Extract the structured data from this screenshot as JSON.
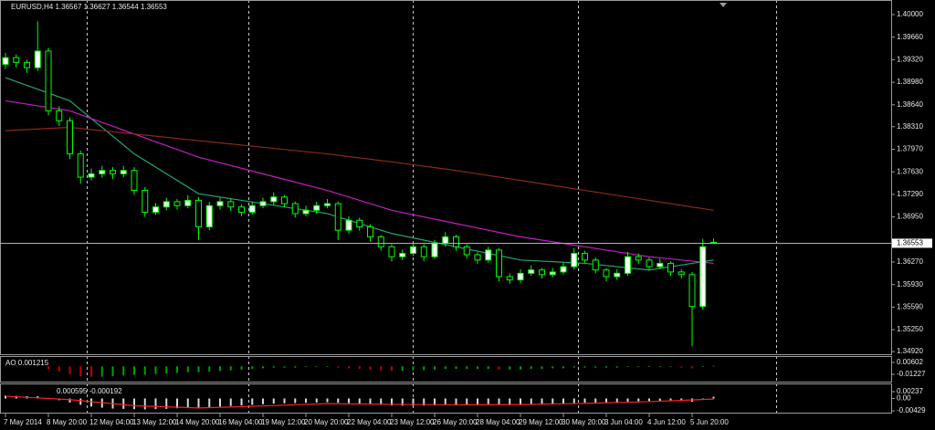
{
  "chart_data": {
    "type": "candlestick",
    "symbol_label": "EURUSD,H4",
    "categories": [
      "7 May 2014",
      null,
      null,
      null,
      "8 May 20:00",
      null,
      null,
      null,
      "12 May 04:00",
      null,
      null,
      null,
      "13 May 12:00",
      null,
      null,
      null,
      "14 May 20:00",
      null,
      null,
      null,
      "16 May 04:00",
      null,
      null,
      null,
      "19 May 12:00",
      null,
      null,
      null,
      "20 May 20:00",
      null,
      null,
      null,
      "22 May 04:00",
      null,
      null,
      null,
      "23 May 12:00",
      null,
      null,
      null,
      "26 May 20:00",
      null,
      null,
      null,
      "28 May 04:00",
      null,
      null,
      null,
      "29 May 12:00",
      null,
      null,
      null,
      "30 May 20:00",
      null,
      null,
      null,
      "3 Jun 04:00",
      null,
      null,
      null,
      "4 Jun 12:00",
      null,
      null,
      null,
      "5 Jun 20:00",
      null,
      null
    ],
    "ohlc": [
      [
        1.3925,
        1.3942,
        1.3918,
        1.3935
      ],
      [
        1.3935,
        1.394,
        1.392,
        1.3928
      ],
      [
        1.3928,
        1.3932,
        1.3912,
        1.392
      ],
      [
        1.392,
        1.399,
        1.3915,
        1.3945
      ],
      [
        1.3945,
        1.395,
        1.3848,
        1.3855
      ],
      [
        1.3855,
        1.3862,
        1.3832,
        1.384
      ],
      [
        1.384,
        1.3845,
        1.3782,
        1.379
      ],
      [
        1.379,
        1.3795,
        1.3745,
        1.3755
      ],
      [
        1.3755,
        1.3768,
        1.375,
        1.376
      ],
      [
        1.376,
        1.3772,
        1.3754,
        1.3765
      ],
      [
        1.3765,
        1.377,
        1.3752,
        1.376
      ],
      [
        1.376,
        1.3772,
        1.3755,
        1.3765
      ],
      [
        1.3765,
        1.377,
        1.3728,
        1.3735
      ],
      [
        1.3735,
        1.374,
        1.3695,
        1.3702
      ],
      [
        1.3702,
        1.3716,
        1.3698,
        1.371
      ],
      [
        1.371,
        1.3724,
        1.3705,
        1.3718
      ],
      [
        1.3718,
        1.3722,
        1.3706,
        1.3712
      ],
      [
        1.3712,
        1.3728,
        1.3708,
        1.372
      ],
      [
        1.372,
        1.3725,
        1.366,
        1.368
      ],
      [
        1.368,
        1.3718,
        1.3675,
        1.3712
      ],
      [
        1.3712,
        1.3724,
        1.3706,
        1.3718
      ],
      [
        1.3718,
        1.3722,
        1.3704,
        1.371
      ],
      [
        1.371,
        1.3714,
        1.3696,
        1.3702
      ],
      [
        1.3702,
        1.3718,
        1.3698,
        1.3712
      ],
      [
        1.3712,
        1.3724,
        1.3708,
        1.3718
      ],
      [
        1.3718,
        1.3732,
        1.3712,
        1.3725
      ],
      [
        1.3725,
        1.3728,
        1.371,
        1.3715
      ],
      [
        1.3715,
        1.3718,
        1.3694,
        1.37
      ],
      [
        1.37,
        1.3712,
        1.3696,
        1.3705
      ],
      [
        1.3705,
        1.3718,
        1.37,
        1.3712
      ],
      [
        1.3712,
        1.3722,
        1.3708,
        1.3715
      ],
      [
        1.3715,
        1.3718,
        1.366,
        1.3675
      ],
      [
        1.3675,
        1.3696,
        1.367,
        1.369
      ],
      [
        1.369,
        1.3694,
        1.3674,
        1.368
      ],
      [
        1.368,
        1.3684,
        1.3658,
        1.3665
      ],
      [
        1.3665,
        1.3668,
        1.3644,
        1.365
      ],
      [
        1.365,
        1.3654,
        1.3628,
        1.3635
      ],
      [
        1.3635,
        1.3646,
        1.363,
        1.364
      ],
      [
        1.364,
        1.3656,
        1.3636,
        1.365
      ],
      [
        1.365,
        1.3654,
        1.3628,
        1.3635
      ],
      [
        1.3635,
        1.366,
        1.3632,
        1.3655
      ],
      [
        1.3655,
        1.3672,
        1.365,
        1.3665
      ],
      [
        1.3665,
        1.3668,
        1.3644,
        1.365
      ],
      [
        1.365,
        1.3654,
        1.3632,
        1.3638
      ],
      [
        1.3638,
        1.3642,
        1.3624,
        1.363
      ],
      [
        1.363,
        1.365,
        1.3626,
        1.3645
      ],
      [
        1.3645,
        1.3648,
        1.3598,
        1.3605
      ],
      [
        1.3605,
        1.361,
        1.3594,
        1.36
      ],
      [
        1.36,
        1.3616,
        1.3596,
        1.361
      ],
      [
        1.361,
        1.3622,
        1.3606,
        1.3615
      ],
      [
        1.3615,
        1.3618,
        1.3602,
        1.3608
      ],
      [
        1.3608,
        1.3618,
        1.3604,
        1.3612
      ],
      [
        1.3612,
        1.3626,
        1.3608,
        1.362
      ],
      [
        1.362,
        1.3648,
        1.3616,
        1.364
      ],
      [
        1.364,
        1.3644,
        1.3626,
        1.363
      ],
      [
        1.363,
        1.3634,
        1.361,
        1.3615
      ],
      [
        1.3615,
        1.3618,
        1.3598,
        1.3605
      ],
      [
        1.3605,
        1.3616,
        1.36,
        1.361
      ],
      [
        1.361,
        1.3642,
        1.3606,
        1.3635
      ],
      [
        1.3635,
        1.364,
        1.3624,
        1.363
      ],
      [
        1.363,
        1.3634,
        1.3614,
        1.362
      ],
      [
        1.362,
        1.3632,
        1.3616,
        1.3625
      ],
      [
        1.3625,
        1.3628,
        1.3606,
        1.3612
      ],
      [
        1.3612,
        1.3616,
        1.3602,
        1.3608
      ],
      [
        1.3608,
        1.3612,
        1.35,
        1.356
      ],
      [
        1.356,
        1.3662,
        1.3555,
        1.365
      ],
      [
        1.36567,
        1.36627,
        1.36544,
        1.36553
      ]
    ],
    "bull_color": "#ffffff",
    "bear_color": "#000000",
    "wick_color": "#00ff00",
    "ylim": [
      1.3488,
      1.4022
    ],
    "yticks": [
      {
        "value": 1.4,
        "label": "1.40000"
      },
      {
        "value": 1.3966,
        "label": "1.39660"
      },
      {
        "value": 1.3932,
        "label": "1.39320"
      },
      {
        "value": 1.3898,
        "label": "1.38980"
      },
      {
        "value": 1.3864,
        "label": "1.38640"
      },
      {
        "value": 1.3831,
        "label": "1.38310"
      },
      {
        "value": 1.3797,
        "label": "1.37970"
      },
      {
        "value": 1.3763,
        "label": "1.37630"
      },
      {
        "value": 1.3729,
        "label": "1.37290"
      },
      {
        "value": 1.3695,
        "label": "1.36950"
      },
      {
        "value": 1.3627,
        "label": "1.36270"
      },
      {
        "value": 1.3593,
        "label": "1.35930"
      },
      {
        "value": 1.3559,
        "label": "1.35590"
      },
      {
        "value": 1.3525,
        "label": "1.35250"
      },
      {
        "value": 1.3492,
        "label": "1.34920"
      }
    ],
    "current_price": 1.36553,
    "moving_averages": [
      {
        "color": "#1fa86b",
        "x": [
          0,
          6,
          12,
          18,
          24,
          30,
          36,
          42,
          48,
          54,
          60,
          66
        ],
        "values": [
          1.3905,
          1.387,
          1.379,
          1.373,
          1.3715,
          1.37,
          1.367,
          1.365,
          1.363,
          1.3625,
          1.3615,
          1.363
        ]
      },
      {
        "color": "#c21ec2",
        "x": [
          0,
          6,
          12,
          18,
          24,
          30,
          36,
          42,
          48,
          54,
          60,
          66
        ],
        "values": [
          1.387,
          1.3855,
          1.382,
          1.3785,
          1.376,
          1.3735,
          1.3705,
          1.3685,
          1.3665,
          1.365,
          1.3635,
          1.3625
        ]
      },
      {
        "color": "#8b2a1a",
        "x": [
          0,
          6,
          12,
          18,
          24,
          30,
          36,
          42,
          48,
          54,
          60,
          66
        ],
        "values": [
          1.3825,
          1.383,
          1.382,
          1.381,
          1.38,
          1.379,
          1.3778,
          1.3765,
          1.375,
          1.3735,
          1.372,
          1.3705
        ]
      }
    ],
    "ao": {
      "name": "AO",
      "up_color": "#00a000",
      "down_color": "#c00000",
      "values": [
        0.001,
        0.001,
        0.0,
        0.001,
        -0.004,
        -0.008,
        -0.012,
        -0.015,
        -0.016,
        -0.016,
        -0.015,
        -0.014,
        -0.013,
        -0.013,
        -0.012,
        -0.011,
        -0.01,
        -0.009,
        -0.009,
        -0.008,
        -0.007,
        -0.006,
        -0.005,
        -0.004,
        -0.003,
        -0.002,
        -0.002,
        -0.002,
        -0.001,
        -0.001,
        -0.001,
        -0.002,
        -0.003,
        -0.004,
        -0.005,
        -0.006,
        -0.007,
        -0.007,
        -0.006,
        -0.006,
        -0.005,
        -0.004,
        -0.004,
        -0.004,
        -0.004,
        -0.004,
        -0.005,
        -0.005,
        -0.005,
        -0.004,
        -0.004,
        -0.003,
        -0.003,
        -0.002,
        -0.002,
        -0.002,
        -0.002,
        -0.002,
        -0.001,
        -0.001,
        -0.001,
        -0.001,
        -0.001,
        -0.002,
        -0.003,
        -0.001,
        0.001215
      ],
      "ylim": [
        -0.02352,
        0.01446
      ],
      "yticks": [
        0.00602,
        -0.01227
      ]
    },
    "macd": {
      "bar_color": "#d8d8d8",
      "values": [
        0.001,
        0.0009,
        0.0008,
        0.0008,
        0.0002,
        -0.0006,
        -0.0014,
        -0.0022,
        -0.0028,
        -0.0032,
        -0.0035,
        -0.0036,
        -0.0037,
        -0.0038,
        -0.0037,
        -0.0036,
        -0.0034,
        -0.0032,
        -0.0032,
        -0.003,
        -0.0028,
        -0.0026,
        -0.0024,
        -0.0022,
        -0.002,
        -0.0018,
        -0.0017,
        -0.0016,
        -0.0015,
        -0.0014,
        -0.0013,
        -0.0015,
        -0.0016,
        -0.0018,
        -0.002,
        -0.0022,
        -0.0024,
        -0.0025,
        -0.0025,
        -0.0025,
        -0.0024,
        -0.0022,
        -0.0021,
        -0.0021,
        -0.0021,
        -0.002,
        -0.0022,
        -0.0023,
        -0.0023,
        -0.0022,
        -0.0021,
        -0.002,
        -0.0018,
        -0.0016,
        -0.0015,
        -0.0014,
        -0.0014,
        -0.0013,
        -0.0011,
        -0.001,
        -0.0009,
        -0.0008,
        -0.0008,
        -0.0009,
        -0.0011,
        -0.0004,
        0.000595
      ],
      "signal": {
        "color": "#ff2020",
        "x": [
          0,
          6,
          12,
          18,
          24,
          30,
          36,
          42,
          48,
          54,
          60,
          66
        ],
        "values": [
          0.0008,
          -0.0004,
          -0.0025,
          -0.0033,
          -0.0026,
          -0.0018,
          -0.002,
          -0.0022,
          -0.0021,
          -0.0017,
          -0.0011,
          -0.000192
        ]
      },
      "ylim": [
        -0.00492,
        0.00491
      ],
      "yticks": [
        0.00237,
        {
          "value": 0,
          "label": "0.00"
        },
        -0.00429
      ]
    }
  }
}
